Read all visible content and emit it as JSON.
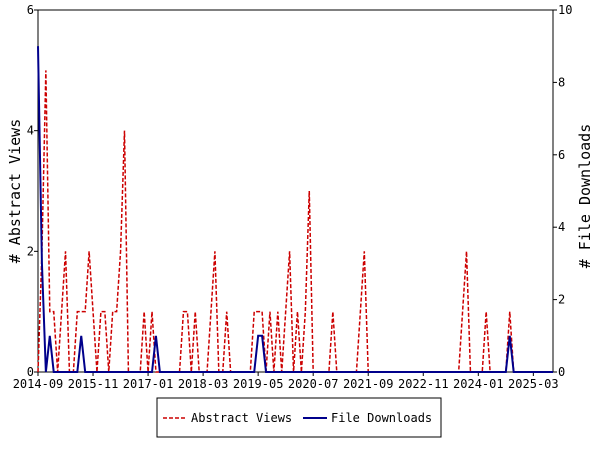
{
  "chart_data": {
    "type": "line",
    "y_label": "# Abstract Views",
    "y2_label": "# File Downloads",
    "categories": [
      "2014-09",
      null,
      null,
      null,
      null,
      null,
      null,
      null,
      null,
      null,
      null,
      null,
      null,
      null,
      "2015-11",
      null,
      null,
      null,
      null,
      null,
      null,
      null,
      null,
      null,
      null,
      null,
      null,
      null,
      "2017-01",
      null,
      null,
      null,
      null,
      null,
      null,
      null,
      null,
      null,
      null,
      null,
      null,
      null,
      "2018-03",
      null,
      null,
      null,
      null,
      null,
      null,
      null,
      null,
      null,
      null,
      null,
      null,
      null,
      "2019-05",
      null,
      null,
      null,
      null,
      null,
      null,
      null,
      null,
      null,
      null,
      null,
      null,
      null,
      "2020-07",
      null,
      null,
      null,
      null,
      null,
      null,
      null,
      null,
      null,
      null,
      null,
      null,
      null,
      "2021-09",
      null,
      null,
      null,
      null,
      null,
      null,
      null,
      null,
      null,
      null,
      null,
      null,
      null,
      "2022-11",
      null,
      null,
      null,
      null,
      null,
      null,
      null,
      null,
      null,
      null,
      null,
      null,
      null,
      "2024-01",
      null,
      null,
      null,
      null,
      null,
      null,
      null,
      null,
      null,
      null,
      null,
      null,
      null,
      "2025-03",
      null,
      null,
      null,
      null,
      null
    ],
    "series": [
      {
        "name": "Abstract Views",
        "color": "#cc0000",
        "dash": true,
        "axis": "y",
        "values": [
          0,
          2,
          5,
          1,
          1,
          0,
          1,
          2,
          0,
          0,
          1,
          1,
          1,
          2,
          1,
          0,
          1,
          1,
          0,
          1,
          1,
          2,
          4,
          0,
          0,
          0,
          0,
          1,
          0,
          1,
          0,
          0,
          0,
          0,
          0,
          0,
          0,
          1,
          1,
          0,
          1,
          0,
          0,
          0,
          1,
          2,
          0,
          0,
          1,
          0,
          0,
          0,
          0,
          0,
          0,
          1,
          1,
          1,
          0,
          1,
          0,
          1,
          0,
          1,
          2,
          0,
          1,
          0,
          1,
          3,
          0,
          0,
          0,
          0,
          0,
          1,
          0,
          0,
          0,
          0,
          0,
          0,
          1,
          2,
          0,
          0,
          0,
          0,
          0,
          0,
          0,
          0,
          0,
          0,
          0,
          0,
          0,
          0,
          0,
          0,
          0,
          0,
          0,
          0,
          0,
          0,
          0,
          0,
          1,
          2,
          0,
          0,
          0,
          0,
          1,
          0,
          0,
          0,
          0,
          0,
          1,
          0,
          0,
          0,
          0,
          0,
          0,
          0,
          0,
          0,
          0,
          0
        ]
      },
      {
        "name": "File Downloads",
        "color": "#00008b",
        "dash": false,
        "axis": "y2",
        "values": [
          9,
          3,
          0,
          1,
          0,
          0,
          0,
          0,
          0,
          0,
          0,
          1,
          0,
          0,
          0,
          0,
          0,
          0,
          0,
          0,
          0,
          0,
          0,
          0,
          0,
          0,
          0,
          0,
          0,
          0,
          1,
          0,
          0,
          0,
          0,
          0,
          0,
          0,
          0,
          0,
          0,
          0,
          0,
          0,
          0,
          0,
          0,
          0,
          0,
          0,
          0,
          0,
          0,
          0,
          0,
          0,
          1,
          1,
          0,
          0,
          0,
          0,
          0,
          0,
          0,
          0,
          0,
          0,
          0,
          0,
          0,
          0,
          0,
          0,
          0,
          0,
          0,
          0,
          0,
          0,
          0,
          0,
          0,
          0,
          0,
          0,
          0,
          0,
          0,
          0,
          0,
          0,
          0,
          0,
          0,
          0,
          0,
          0,
          0,
          0,
          0,
          0,
          0,
          0,
          0,
          0,
          0,
          0,
          0,
          0,
          0,
          0,
          0,
          0,
          0,
          0,
          0,
          0,
          0,
          0,
          1,
          0,
          0,
          0,
          0,
          0,
          0,
          0,
          0,
          0,
          0,
          0
        ]
      }
    ],
    "ylim": [
      0,
      6
    ],
    "yticks": [
      0,
      2,
      4,
      6
    ],
    "y2lim": [
      0,
      10
    ],
    "y2ticks": [
      0,
      2,
      4,
      6,
      8,
      10
    ],
    "legend": "bottom"
  }
}
